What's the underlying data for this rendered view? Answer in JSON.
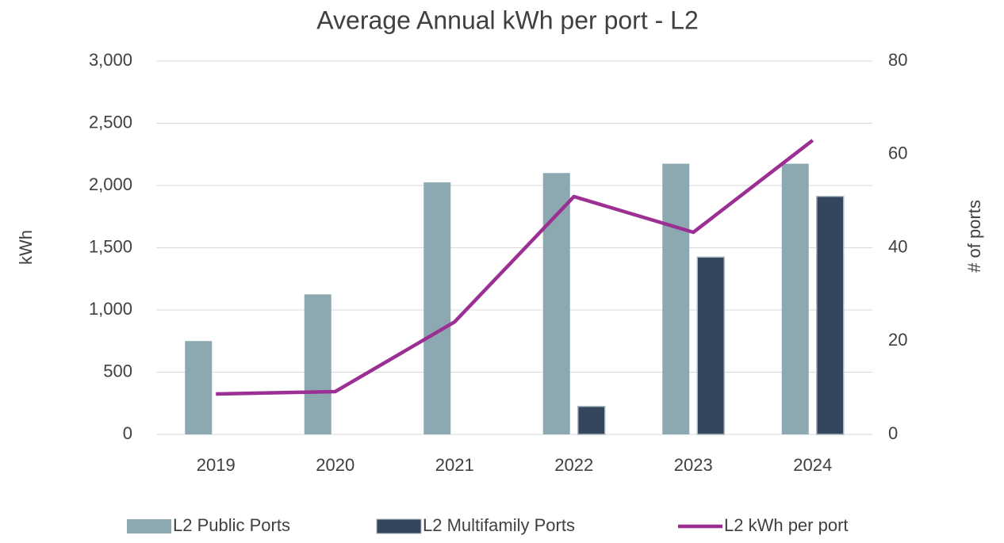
{
  "chart_data": {
    "type": "bar",
    "title": "Average Annual kWh per port - L2",
    "categories": [
      "2019",
      "2020",
      "2021",
      "2022",
      "2023",
      "2024"
    ],
    "y_label": "kWh",
    "y2_label": "# of ports",
    "ylim": [
      0,
      3000
    ],
    "yticks": [
      0,
      500,
      {
        "value": 1000,
        "label": "1,000"
      },
      {
        "value": 1500,
        "label": "1,500"
      },
      {
        "value": 2000,
        "label": "2,000"
      },
      {
        "value": 2500,
        "label": "2,500"
      },
      {
        "value": 3000,
        "label": "3,000"
      }
    ],
    "y2lim": [
      0,
      80
    ],
    "y2ticks": [
      0,
      20,
      40,
      60,
      80
    ],
    "grid": true,
    "legend": "bottom",
    "series": [
      {
        "name": "L2 Public Ports",
        "type": "bar",
        "axis": "y2",
        "color": "#8ca8b0",
        "values": [
          20,
          30,
          54,
          56,
          58,
          58
        ]
      },
      {
        "name": "L2 Multifamily Ports",
        "type": "bar",
        "axis": "y2",
        "color": "#36455e",
        "values": [
          null,
          null,
          null,
          6,
          38,
          51
        ]
      },
      {
        "name": "L2 kWh per port",
        "type": "line",
        "axis": "y",
        "color": "#9b2f93",
        "values": [
          325,
          344,
          904,
          1911,
          1624,
          2363
        ]
      }
    ]
  }
}
